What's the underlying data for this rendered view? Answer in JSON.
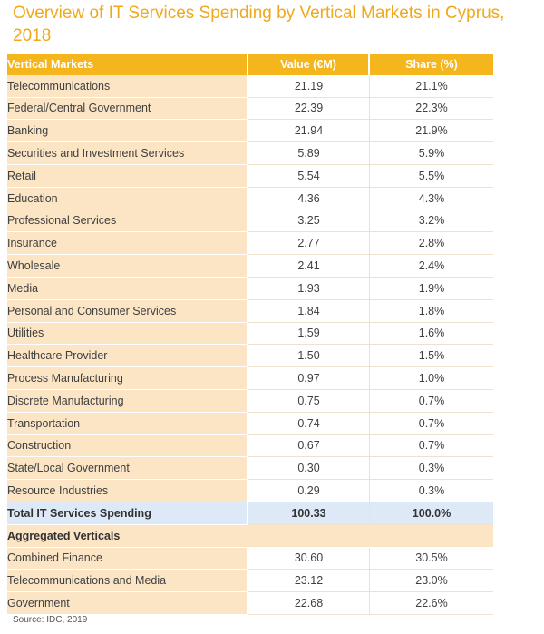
{
  "title": "Overview of IT Services Spending by Vertical Markets in Cyprus, 2018",
  "table": {
    "headers": [
      "Vertical Markets",
      "Value (€M)",
      "Share (%)"
    ],
    "rows": [
      [
        "Telecommunications",
        "21.19",
        "21.1%"
      ],
      [
        "Federal/Central Government",
        "22.39",
        "22.3%"
      ],
      [
        "Banking",
        "21.94",
        "21.9%"
      ],
      [
        "Securities and Investment Services",
        "5.89",
        "5.9%"
      ],
      [
        "Retail",
        "5.54",
        "5.5%"
      ],
      [
        "Education",
        "4.36",
        "4.3%"
      ],
      [
        "Professional Services",
        "3.25",
        "3.2%"
      ],
      [
        "Insurance",
        "2.77",
        "2.8%"
      ],
      [
        "Wholesale",
        "2.41",
        "2.4%"
      ],
      [
        "Media",
        "1.93",
        "1.9%"
      ],
      [
        "Personal and Consumer Services",
        "1.84",
        "1.8%"
      ],
      [
        "Utilities",
        "1.59",
        "1.6%"
      ],
      [
        "Healthcare Provider",
        "1.50",
        "1.5%"
      ],
      [
        "Process Manufacturing",
        "0.97",
        "1.0%"
      ],
      [
        "Discrete Manufacturing",
        "0.75",
        "0.7%"
      ],
      [
        "Transportation",
        "0.74",
        "0.7%"
      ],
      [
        "Construction",
        "0.67",
        "0.7%"
      ],
      [
        "State/Local Government",
        "0.30",
        "0.3%"
      ],
      [
        "Resource Industries",
        "0.29",
        "0.3%"
      ]
    ],
    "total": [
      "Total IT Services Spending",
      "100.33",
      "100.0%"
    ],
    "aggregated_heading": "Aggregated Verticals",
    "aggregated_rows": [
      [
        "Combined Finance",
        "30.60",
        "30.5%"
      ],
      [
        "Telecommunications and Media",
        "23.12",
        "23.0%"
      ],
      [
        "Government",
        "22.68",
        "22.6%"
      ]
    ]
  },
  "source": "Source: IDC, 2019"
}
